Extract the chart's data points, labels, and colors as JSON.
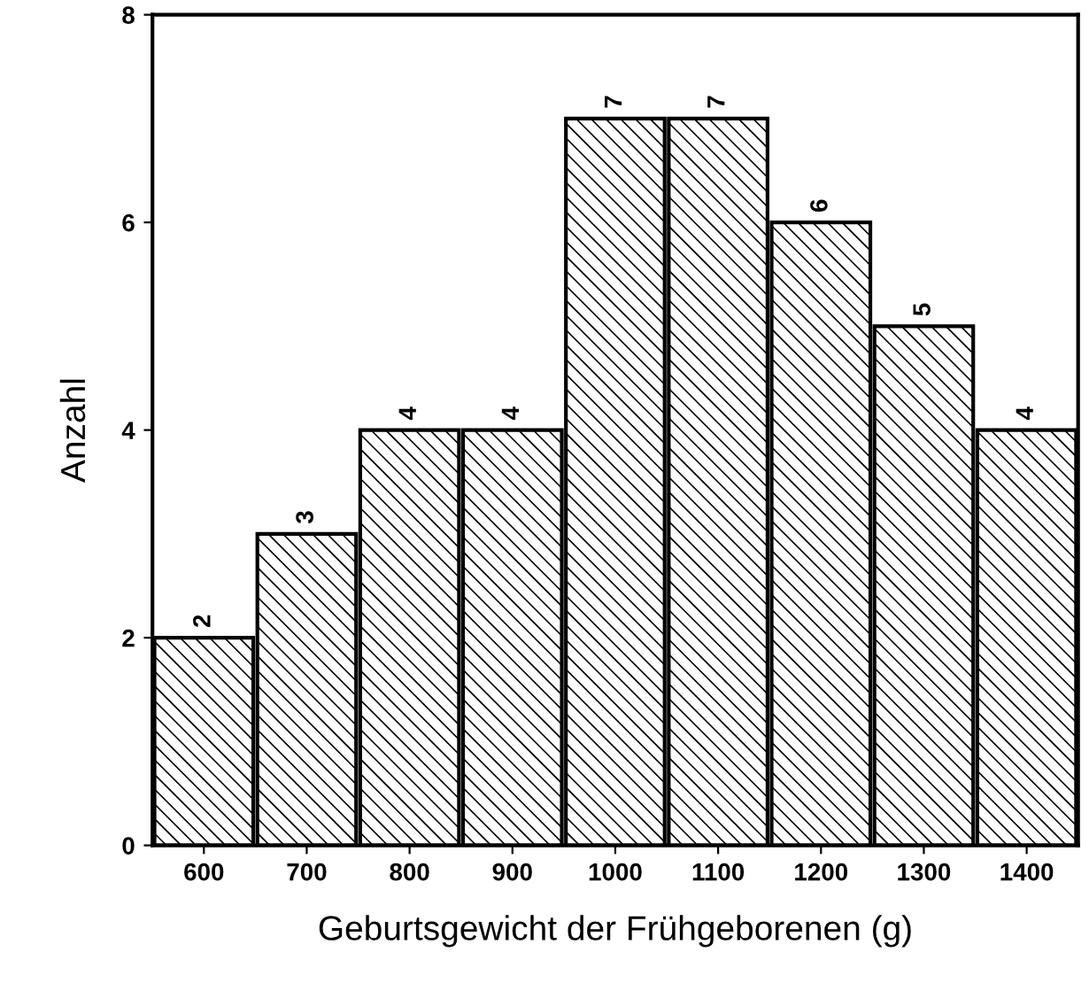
{
  "chart_data": {
    "type": "bar",
    "xlabel": "Geburtsgewicht der Frühgeborenen (g)",
    "ylabel": "Anzahl",
    "categories": [
      "600",
      "700",
      "800",
      "900",
      "1000",
      "1100",
      "1200",
      "1300",
      "1400"
    ],
    "values": [
      2,
      3,
      4,
      4,
      7,
      7,
      6,
      5,
      4
    ],
    "color": "#000000",
    "ylim": [
      0,
      8
    ],
    "yticks": [
      0,
      2,
      4,
      6,
      8
    ],
    "grid": false,
    "data_labels": true
  }
}
